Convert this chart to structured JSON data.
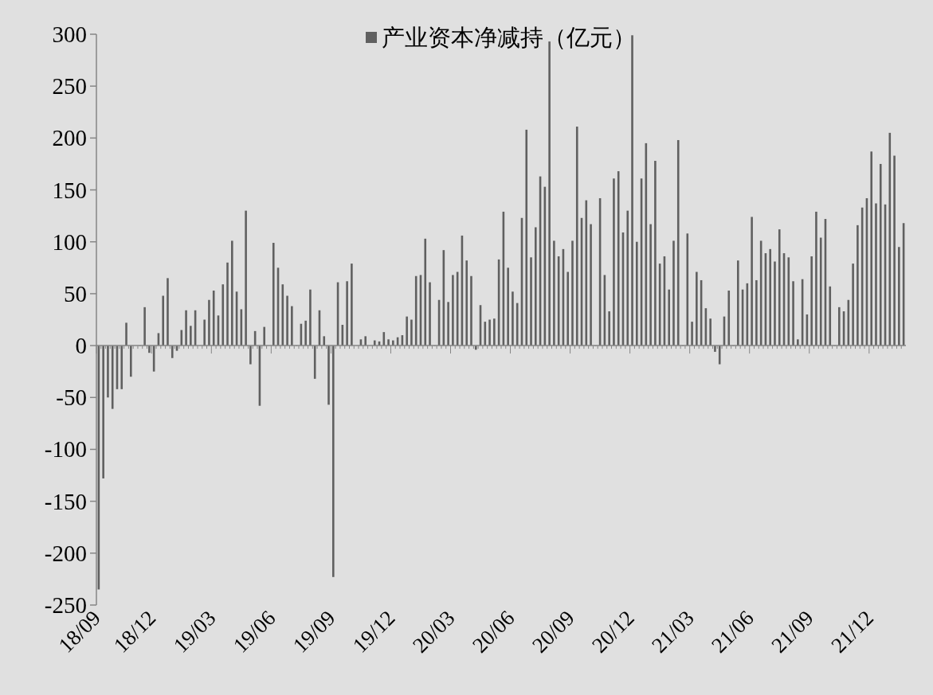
{
  "chart_data": {
    "type": "bar",
    "categories": [
      "18/09",
      null,
      null,
      null,
      null,
      null,
      null,
      null,
      null,
      null,
      null,
      null,
      "18/12",
      null,
      null,
      null,
      null,
      null,
      null,
      null,
      null,
      null,
      null,
      null,
      null,
      "19/03",
      null,
      null,
      null,
      null,
      null,
      null,
      null,
      null,
      null,
      null,
      null,
      null,
      "19/06",
      null,
      null,
      null,
      null,
      null,
      null,
      null,
      null,
      null,
      null,
      null,
      null,
      "19/09",
      null,
      null,
      null,
      null,
      null,
      null,
      null,
      null,
      null,
      null,
      null,
      null,
      "19/12",
      null,
      null,
      null,
      null,
      null,
      null,
      null,
      null,
      null,
      null,
      null,
      null,
      "20/03",
      null,
      null,
      null,
      null,
      null,
      null,
      null,
      null,
      null,
      null,
      null,
      null,
      "20/06",
      null,
      null,
      null,
      null,
      null,
      null,
      null,
      null,
      null,
      null,
      null,
      null,
      "20/09",
      null,
      null,
      null,
      null,
      null,
      null,
      null,
      null,
      null,
      null,
      null,
      null,
      "20/12",
      null,
      null,
      null,
      null,
      null,
      null,
      null,
      null,
      null,
      null,
      null,
      null,
      "21/03",
      null,
      null,
      null,
      null,
      null,
      null,
      null,
      null,
      null,
      null,
      null,
      null,
      "21/06",
      null,
      null,
      null,
      null,
      null,
      null,
      null,
      null,
      null,
      null,
      null,
      null,
      "21/09",
      null,
      null,
      null,
      null,
      null,
      null,
      null,
      null,
      null,
      null,
      null,
      null,
      "21/12",
      null,
      null,
      null,
      null,
      null,
      null,
      null
    ],
    "series": [
      {
        "name": "产业资本净减持（亿元）",
        "color": "#606060",
        "values": [
          -235,
          -128,
          -50,
          -61,
          -42,
          -42,
          22,
          -30,
          null,
          0,
          37,
          -7,
          -25,
          12,
          48,
          65,
          -12,
          -5,
          15,
          34,
          19,
          34,
          null,
          25,
          44,
          53,
          29,
          59,
          80,
          101,
          52,
          35,
          130,
          -18,
          14,
          -58,
          18,
          null,
          99,
          75,
          59,
          48,
          38,
          0,
          21,
          24,
          54,
          -32,
          34,
          9,
          -57,
          -223,
          61,
          20,
          62,
          79,
          null,
          6,
          9,
          null,
          5,
          4,
          13,
          6,
          5,
          8,
          10,
          28,
          25,
          67,
          68,
          103,
          61,
          0,
          44,
          92,
          42,
          68,
          71,
          106,
          82,
          67,
          -4,
          39,
          23,
          25,
          26,
          83,
          129,
          75,
          52,
          41,
          123,
          208,
          85,
          114,
          163,
          153,
          293,
          101,
          86,
          93,
          71,
          101,
          211,
          123,
          140,
          117,
          0,
          142,
          68,
          33,
          161,
          168,
          109,
          130,
          299,
          100,
          161,
          195,
          117,
          178,
          79,
          86,
          54,
          101,
          198,
          0,
          108,
          23,
          71,
          63,
          36,
          26,
          -6,
          -18,
          28,
          53,
          0,
          82,
          54,
          60,
          124,
          63,
          101,
          89,
          93,
          81,
          112,
          89,
          85,
          62,
          6,
          64,
          30,
          86,
          129,
          104,
          122,
          57,
          0,
          37,
          33,
          44,
          79,
          116,
          133,
          142,
          187,
          137,
          175,
          136,
          205,
          183,
          95,
          118
        ]
      }
    ],
    "ylim": [
      -250,
      300
    ],
    "yticks": [
      -250,
      -200,
      -150,
      -100,
      -50,
      0,
      50,
      100,
      150,
      200,
      250,
      300
    ],
    "legend": "top"
  }
}
